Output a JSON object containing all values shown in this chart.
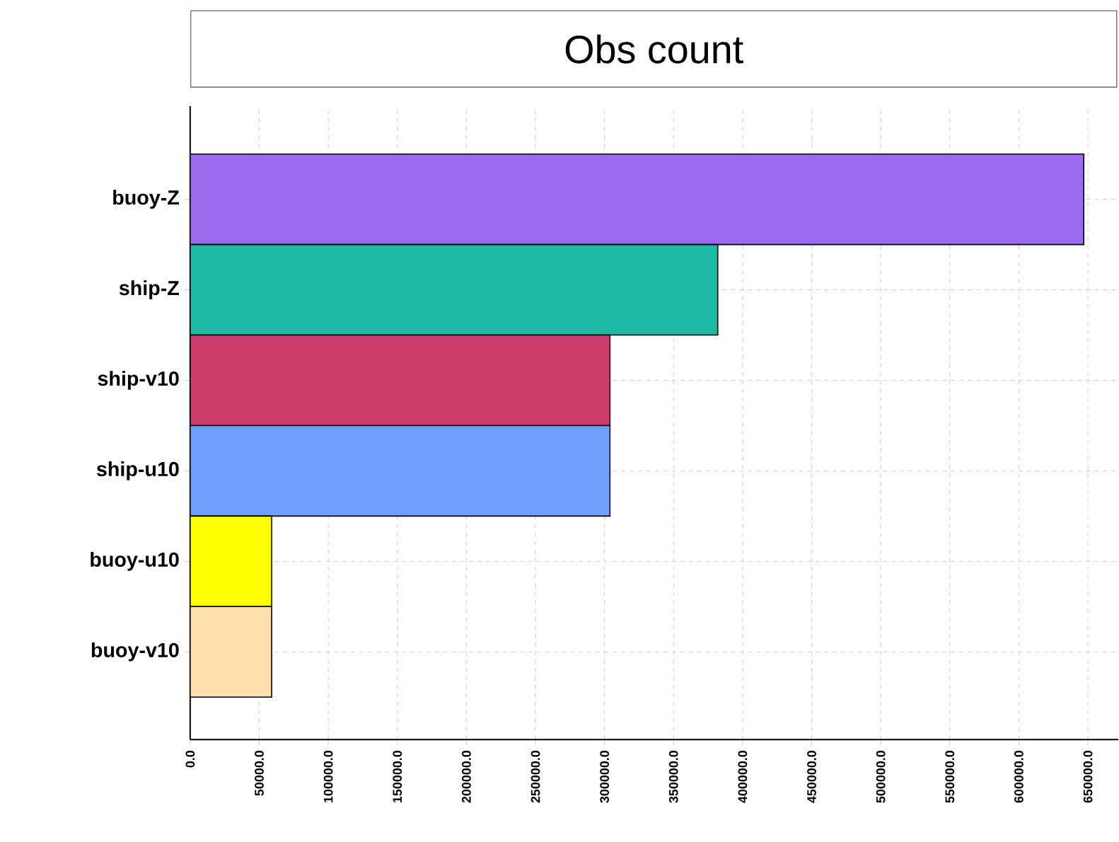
{
  "chart_data": {
    "type": "bar",
    "orientation": "horizontal",
    "title": "Obs count",
    "categories": [
      "buoy-Z",
      "ship-Z",
      "ship-v10",
      "ship-u10",
      "buoy-u10",
      "buoy-v10"
    ],
    "values": [
      647000,
      382000,
      304000,
      304000,
      59000,
      59000
    ],
    "colors": [
      "#9a6aef",
      "#1fb8a4",
      "#cc3d6c",
      "#70a0ff",
      "#ffff00",
      "#ffdfab"
    ],
    "xlim": [
      0,
      672000
    ],
    "xticks": [
      {
        "value": 0,
        "label": "0.0"
      },
      {
        "value": 50000,
        "label": "50000.0"
      },
      {
        "value": 100000,
        "label": "100000.0"
      },
      {
        "value": 150000,
        "label": "150000.0"
      },
      {
        "value": 200000,
        "label": "200000.0"
      },
      {
        "value": 250000,
        "label": "250000.0"
      },
      {
        "value": 300000,
        "label": "300000.0"
      },
      {
        "value": 350000,
        "label": "350000.0"
      },
      {
        "value": 400000,
        "label": "400000.0"
      },
      {
        "value": 450000,
        "label": "450000.0"
      },
      {
        "value": 500000,
        "label": "500000.0"
      },
      {
        "value": 550000,
        "label": "550000.0"
      },
      {
        "value": 600000,
        "label": "600000.0"
      },
      {
        "value": 650000,
        "label": "650000.0"
      }
    ],
    "grid": true
  }
}
